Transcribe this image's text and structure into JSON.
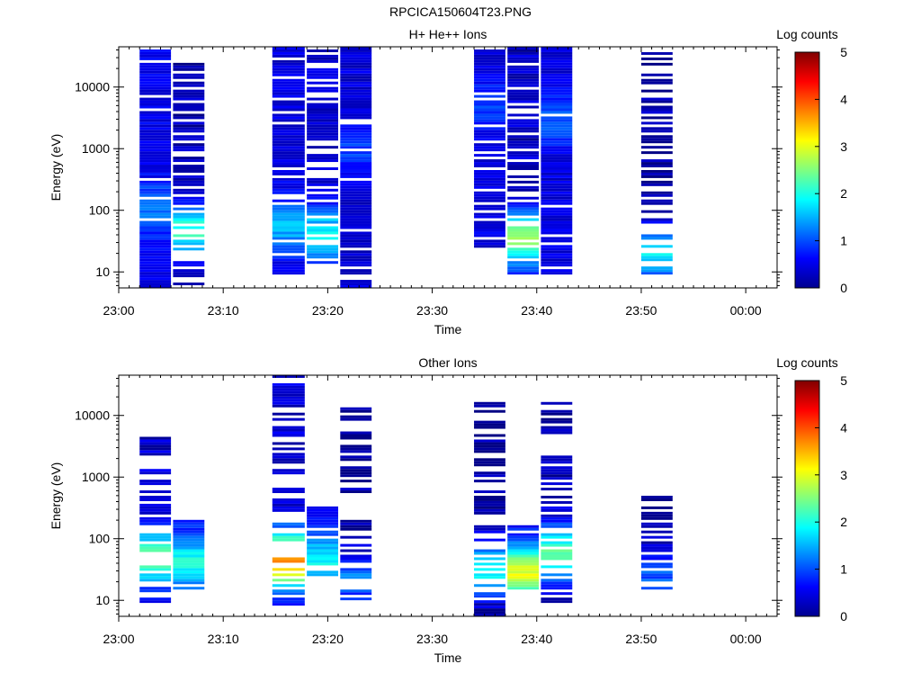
{
  "figure_title": "RPCICA150604T23.PNG",
  "colors": {
    "text": "#000000",
    "frame": "#000000",
    "background": "#ffffff",
    "colormap": "jet"
  },
  "chart_data": [
    {
      "type": "heatmap",
      "title": "H+ He++ Ions",
      "xlabel": "Time",
      "ylabel": "Energy (eV)",
      "x_ticks": [
        "23:00",
        "23:10",
        "23:20",
        "23:30",
        "23:40",
        "23:50",
        "00:00"
      ],
      "x_range_minutes": [
        0,
        63
      ],
      "y_scale": "log",
      "y_ticks": [
        "10",
        "100",
        "1000",
        "10000"
      ],
      "y_range": [
        5.5,
        45000
      ],
      "colorbar": {
        "label": "Log counts",
        "min": 0,
        "max": 5,
        "ticks": [
          "0",
          "1",
          "2",
          "3",
          "4",
          "5"
        ]
      },
      "columns": [
        {
          "t0": 2.0,
          "t1": 5.0,
          "seed": 11,
          "emin": 5.5,
          "emax": 45000,
          "fill": 0.92,
          "peak_e": 100,
          "peak": 1.3,
          "base": 0.55,
          "drop": 0.08
        },
        {
          "t0": 5.2,
          "t1": 8.2,
          "seed": 12,
          "emin": 5.5,
          "emax": 25000,
          "fill": 0.7,
          "peak_e": 45,
          "peak": 2.3,
          "base": 0.4,
          "drop": 0.3
        },
        {
          "t0": 14.7,
          "t1": 17.8,
          "seed": 13,
          "emin": 9.5,
          "emax": 45000,
          "fill": 0.88,
          "peak_e": 55,
          "peak": 1.6,
          "base": 0.5,
          "drop": 0.1
        },
        {
          "t0": 18.0,
          "t1": 21.0,
          "seed": 14,
          "emin": 14,
          "emax": 40000,
          "fill": 0.72,
          "peak_e": 40,
          "peak": 2.1,
          "base": 0.5,
          "drop": 0.25
        },
        {
          "t0": 21.2,
          "t1": 24.2,
          "seed": 15,
          "emin": 5.5,
          "emax": 45000,
          "fill": 0.9,
          "peak_e": 1000,
          "peak": 1.0,
          "base": 0.45,
          "drop": 0.06
        },
        {
          "t0": 34.0,
          "t1": 37.0,
          "seed": 16,
          "emin": 20,
          "emax": 45000,
          "fill": 0.78,
          "peak_e": 5000,
          "peak": 1.0,
          "base": 0.5,
          "drop": 0.12
        },
        {
          "t0": 37.2,
          "t1": 40.2,
          "seed": 17,
          "emin": 9,
          "emax": 45000,
          "fill": 0.72,
          "peak_e": 35,
          "peak": 2.8,
          "base": 0.45,
          "drop": 0.25
        },
        {
          "t0": 40.4,
          "t1": 43.4,
          "seed": 18,
          "emin": 9,
          "emax": 45000,
          "fill": 0.9,
          "peak_e": 3000,
          "peak": 1.1,
          "base": 0.5,
          "drop": 0.08
        },
        {
          "t0": 50.0,
          "t1": 53.0,
          "seed": 19,
          "emin": 9,
          "emax": 40000,
          "fill": 0.55,
          "peak_e": 20,
          "peak": 1.9,
          "base": 0.3,
          "drop": 0.35
        }
      ]
    },
    {
      "type": "heatmap",
      "title": "Other Ions",
      "xlabel": "Time",
      "ylabel": "Energy (eV)",
      "x_ticks": [
        "23:00",
        "23:10",
        "23:20",
        "23:30",
        "23:40",
        "23:50",
        "00:00"
      ],
      "x_range_minutes": [
        0,
        63
      ],
      "y_scale": "log",
      "y_ticks": [
        "10",
        "100",
        "1000",
        "10000"
      ],
      "y_range": [
        5.5,
        45000
      ],
      "colorbar": {
        "label": "Log counts",
        "min": 0,
        "max": 5,
        "ticks": [
          "0",
          "1",
          "2",
          "3",
          "4",
          "5"
        ]
      },
      "columns": [
        {
          "t0": 2.0,
          "t1": 5.0,
          "seed": 21,
          "emin": 9,
          "emax": 4500,
          "fill": 0.6,
          "peak_e": 50,
          "peak": 2.6,
          "base": 0.5,
          "drop": 0.25
        },
        {
          "t0": 5.2,
          "t1": 8.2,
          "seed": 22,
          "emin": 15,
          "emax": 200,
          "fill": 0.95,
          "peak_e": 40,
          "peak": 2.0,
          "base": 0.6,
          "drop": 0.05
        },
        {
          "t0": 14.7,
          "t1": 17.8,
          "seed": 23,
          "emin": 5.5,
          "emax": 45000,
          "fill": 0.55,
          "peak_e": 45,
          "peak": 3.9,
          "base": 0.55,
          "drop": 0.3
        },
        {
          "t0": 18.0,
          "t1": 21.0,
          "seed": 24,
          "emin": 25,
          "emax": 350,
          "fill": 0.8,
          "peak_e": 45,
          "peak": 2.0,
          "base": 0.6,
          "drop": 0.2
        },
        {
          "t0": 21.2,
          "t1": 24.2,
          "seed": 25,
          "emin": 9,
          "emax": 14000,
          "fill": 0.45,
          "peak_e": 20,
          "peak": 1.5,
          "base": 0.3,
          "drop": 0.4
        },
        {
          "t0": 34.0,
          "t1": 37.0,
          "seed": 26,
          "emin": 5.5,
          "emax": 17000,
          "fill": 0.5,
          "peak_e": 30,
          "peak": 2.0,
          "base": 0.3,
          "drop": 0.35
        },
        {
          "t0": 37.2,
          "t1": 40.2,
          "seed": 27,
          "emin": 15,
          "emax": 160,
          "fill": 0.95,
          "peak_e": 28,
          "peak": 3.0,
          "base": 0.6,
          "drop": 0.05
        },
        {
          "t0": 40.4,
          "t1": 43.4,
          "seed": 28,
          "emin": 9,
          "emax": 19000,
          "fill": 0.55,
          "peak_e": 60,
          "peak": 2.5,
          "base": 0.4,
          "drop": 0.3
        },
        {
          "t0": 50.0,
          "t1": 53.0,
          "seed": 29,
          "emin": 15,
          "emax": 480,
          "fill": 0.55,
          "peak_e": 25,
          "peak": 1.3,
          "base": 0.3,
          "drop": 0.35
        }
      ]
    }
  ]
}
